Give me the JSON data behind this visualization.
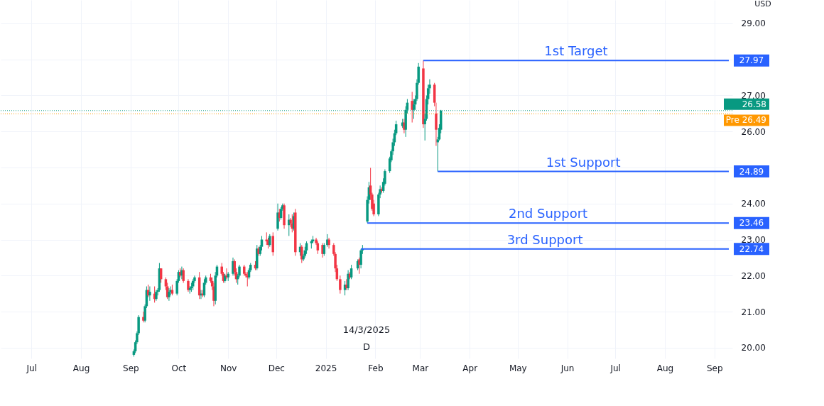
{
  "chart_data": {
    "type": "candlestick",
    "x": [
      "2024-09-03",
      "2024-09-04",
      "2024-09-05",
      "2024-09-06",
      "2024-09-09",
      "2024-09-10",
      "2024-09-11",
      "2024-09-12",
      "2024-09-13",
      "2024-09-16",
      "2024-09-17",
      "2024-09-18",
      "2024-09-19",
      "2024-09-20",
      "2024-09-23",
      "2024-09-24",
      "2024-09-25",
      "2024-09-26",
      "2024-09-27",
      "2024-09-30",
      "2024-10-01",
      "2024-10-02",
      "2024-10-03",
      "2024-10-04",
      "2024-10-07",
      "2024-10-08",
      "2024-10-09",
      "2024-10-10",
      "2024-10-11",
      "2024-10-14",
      "2024-10-15",
      "2024-10-16",
      "2024-10-17",
      "2024-10-18",
      "2024-10-21",
      "2024-10-22",
      "2024-10-23",
      "2024-10-24",
      "2024-10-25",
      "2024-10-28",
      "2024-10-29",
      "2024-10-30",
      "2024-10-31",
      "2024-11-01",
      "2024-11-04",
      "2024-11-05",
      "2024-11-06",
      "2024-11-07",
      "2024-11-08",
      "2024-11-11",
      "2024-11-12",
      "2024-11-13",
      "2024-11-14",
      "2024-11-15",
      "2024-11-18",
      "2024-11-19",
      "2024-11-20",
      "2024-11-21",
      "2024-11-22",
      "2024-11-25",
      "2024-11-26",
      "2024-11-27",
      "2024-11-29",
      "2024-12-02",
      "2024-12-03",
      "2024-12-04",
      "2024-12-05",
      "2024-12-06",
      "2024-12-09",
      "2024-12-10",
      "2024-12-11",
      "2024-12-12",
      "2024-12-13",
      "2024-12-16",
      "2024-12-17",
      "2024-12-18",
      "2024-12-19",
      "2024-12-20",
      "2024-12-23",
      "2024-12-24",
      "2024-12-26",
      "2024-12-27",
      "2024-12-30",
      "2024-12-31",
      "2025-01-02",
      "2025-01-03",
      "2025-01-06",
      "2025-01-07",
      "2025-01-08",
      "2025-01-10",
      "2025-01-13",
      "2025-01-14",
      "2025-01-15",
      "2025-01-16",
      "2025-01-17",
      "2025-01-21",
      "2025-01-22",
      "2025-01-23",
      "2025-01-24",
      "2025-01-27",
      "2025-01-28",
      "2025-01-29",
      "2025-01-30",
      "2025-01-31",
      "2025-02-03",
      "2025-02-04",
      "2025-02-05",
      "2025-02-06",
      "2025-02-07",
      "2025-02-10",
      "2025-02-11",
      "2025-02-12",
      "2025-02-13",
      "2025-02-14",
      "2025-02-18",
      "2025-02-19",
      "2025-02-20",
      "2025-02-21",
      "2025-02-24",
      "2025-02-25",
      "2025-02-26",
      "2025-02-27",
      "2025-02-28",
      "2025-03-03",
      "2025-03-04",
      "2025-03-05",
      "2025-03-06",
      "2025-03-07",
      "2025-03-10",
      "2025-03-11",
      "2025-03-12",
      "2025-03-13",
      "2025-03-14"
    ],
    "ohlc": [
      [
        19.8,
        19.95,
        19.75,
        19.9
      ],
      [
        19.9,
        20.2,
        19.85,
        20.15
      ],
      [
        20.15,
        20.45,
        20.1,
        20.4
      ],
      [
        20.4,
        20.9,
        20.35,
        20.85
      ],
      [
        20.85,
        21.0,
        20.7,
        20.75
      ],
      [
        20.75,
        21.2,
        20.7,
        21.15
      ],
      [
        21.15,
        21.7,
        21.1,
        21.6
      ],
      [
        21.6,
        21.75,
        21.4,
        21.45
      ],
      [
        21.45,
        21.7,
        21.3,
        21.55
      ],
      [
        21.5,
        21.7,
        21.25,
        21.35
      ],
      [
        21.35,
        21.6,
        21.3,
        21.55
      ],
      [
        21.55,
        21.65,
        21.45,
        21.6
      ],
      [
        21.6,
        22.35,
        21.55,
        22.2
      ],
      [
        22.2,
        22.2,
        21.8,
        21.9
      ],
      [
        21.9,
        21.95,
        21.6,
        21.7
      ],
      [
        21.7,
        21.8,
        21.35,
        21.4
      ],
      [
        21.4,
        21.65,
        21.3,
        21.55
      ],
      [
        21.55,
        21.7,
        21.45,
        21.6
      ],
      [
        21.6,
        21.75,
        21.45,
        21.5
      ],
      [
        21.5,
        21.9,
        21.45,
        21.85
      ],
      [
        21.85,
        22.15,
        21.8,
        22.1
      ],
      [
        22.1,
        22.2,
        21.95,
        22.0
      ],
      [
        22.0,
        22.25,
        21.9,
        22.15
      ],
      [
        22.15,
        22.2,
        21.8,
        21.85
      ],
      [
        21.85,
        21.9,
        21.55,
        21.6
      ],
      [
        21.6,
        21.7,
        21.5,
        21.65
      ],
      [
        21.65,
        21.8,
        21.55,
        21.7
      ],
      [
        21.7,
        21.9,
        21.6,
        21.85
      ],
      [
        21.85,
        22.0,
        21.8,
        21.95
      ],
      [
        21.95,
        22.1,
        21.35,
        21.45
      ],
      [
        21.45,
        21.6,
        21.35,
        21.5
      ],
      [
        21.5,
        21.6,
        21.4,
        21.45
      ],
      [
        21.45,
        21.9,
        21.4,
        21.8
      ],
      [
        21.8,
        22.0,
        21.75,
        21.95
      ],
      [
        21.95,
        22.05,
        21.8,
        21.85
      ],
      [
        21.85,
        21.95,
        21.6,
        21.7
      ],
      [
        21.7,
        21.8,
        21.15,
        21.3
      ],
      [
        21.3,
        22.1,
        21.2,
        22.0
      ],
      [
        22.0,
        22.3,
        21.95,
        22.25
      ],
      [
        22.25,
        22.35,
        22.0,
        22.05
      ],
      [
        22.05,
        22.1,
        21.8,
        21.85
      ],
      [
        21.85,
        22.05,
        21.8,
        22.0
      ],
      [
        22.0,
        22.2,
        21.9,
        21.95
      ],
      [
        21.95,
        22.1,
        21.85,
        22.05
      ],
      [
        22.05,
        22.5,
        22.0,
        22.4
      ],
      [
        22.4,
        22.45,
        22.0,
        22.1
      ],
      [
        22.1,
        22.2,
        21.8,
        21.9
      ],
      [
        21.9,
        22.05,
        21.75,
        22.0
      ],
      [
        22.0,
        22.3,
        21.95,
        22.25
      ],
      [
        22.25,
        22.3,
        22.0,
        22.05
      ],
      [
        22.05,
        22.1,
        21.95,
        22.0
      ],
      [
        22.0,
        22.1,
        21.7,
        21.95
      ],
      [
        21.95,
        22.2,
        21.9,
        22.15
      ],
      [
        22.15,
        22.35,
        22.1,
        22.3
      ],
      [
        22.3,
        22.4,
        22.15,
        22.2
      ],
      [
        22.2,
        22.85,
        22.15,
        22.75
      ],
      [
        22.75,
        22.8,
        22.55,
        22.6
      ],
      [
        22.6,
        22.85,
        22.55,
        22.8
      ],
      [
        22.8,
        23.1,
        22.7,
        23.0
      ],
      [
        23.0,
        23.2,
        22.85,
        22.95
      ],
      [
        22.95,
        23.05,
        22.75,
        22.85
      ],
      [
        22.85,
        23.15,
        22.8,
        23.1
      ],
      [
        23.1,
        23.2,
        22.55,
        22.65
      ],
      [
        23.3,
        24.0,
        23.25,
        23.75
      ],
      [
        23.75,
        23.85,
        23.5,
        23.6
      ],
      [
        23.6,
        23.9,
        23.55,
        23.85
      ],
      [
        23.85,
        24.0,
        23.8,
        23.95
      ],
      [
        23.95,
        24.0,
        23.3,
        23.4
      ],
      [
        23.4,
        23.7,
        23.1,
        23.55
      ],
      [
        23.55,
        23.6,
        23.35,
        23.45
      ],
      [
        23.45,
        23.7,
        23.2,
        23.3
      ],
      [
        23.3,
        23.75,
        23.25,
        23.65
      ],
      [
        23.75,
        23.85,
        22.55,
        22.65
      ],
      [
        22.65,
        22.9,
        22.55,
        22.8
      ],
      [
        22.8,
        22.85,
        22.35,
        22.45
      ],
      [
        22.45,
        22.6,
        22.4,
        22.55
      ],
      [
        22.55,
        22.8,
        22.5,
        22.7
      ],
      [
        22.7,
        22.95,
        22.6,
        22.9
      ],
      [
        22.9,
        23.0,
        22.75,
        22.95
      ],
      [
        22.95,
        23.1,
        22.9,
        23.0
      ],
      [
        23.0,
        23.05,
        22.85,
        22.9
      ],
      [
        22.9,
        22.95,
        22.6,
        22.7
      ],
      [
        22.85,
        22.9,
        22.5,
        22.6
      ],
      [
        22.6,
        22.9,
        22.55,
        22.85
      ],
      [
        22.85,
        23.15,
        22.8,
        23.0
      ],
      [
        23.0,
        23.05,
        22.75,
        22.85
      ],
      [
        22.85,
        22.9,
        22.55,
        22.6
      ],
      [
        22.6,
        22.65,
        22.1,
        22.2
      ],
      [
        22.2,
        22.3,
        21.85,
        21.9
      ],
      [
        21.9,
        22.0,
        21.5,
        21.6
      ],
      [
        21.6,
        21.85,
        21.45,
        21.75
      ],
      [
        21.75,
        21.9,
        21.6,
        21.65
      ],
      [
        21.65,
        22.15,
        21.6,
        22.05
      ],
      [
        22.05,
        22.1,
        21.9,
        21.95
      ],
      [
        21.95,
        22.3,
        21.9,
        22.2
      ],
      [
        22.2,
        22.45,
        22.15,
        22.4
      ],
      [
        22.45,
        22.5,
        22.05,
        22.3
      ],
      [
        22.3,
        22.74,
        22.2,
        22.7
      ],
      [
        22.7,
        22.85,
        22.6,
        22.75
      ],
      [
        23.5,
        24.2,
        23.46,
        24.1
      ],
      [
        24.1,
        24.6,
        24.0,
        24.45
      ],
      [
        24.5,
        24.99,
        24.1,
        24.25
      ],
      [
        24.25,
        24.3,
        23.8,
        23.85
      ],
      [
        24.0,
        24.1,
        23.65,
        23.7
      ],
      [
        23.7,
        24.3,
        23.65,
        24.25
      ],
      [
        24.25,
        24.5,
        24.15,
        24.4
      ],
      [
        24.4,
        24.45,
        24.3,
        24.35
      ],
      [
        24.35,
        24.7,
        24.3,
        24.6
      ],
      [
        24.55,
        24.95,
        24.5,
        24.9
      ],
      [
        24.9,
        25.3,
        24.85,
        25.25
      ],
      [
        25.2,
        25.5,
        25.15,
        25.45
      ],
      [
        25.45,
        25.8,
        25.35,
        25.7
      ],
      [
        25.7,
        26.05,
        25.6,
        25.95
      ],
      [
        25.95,
        26.3,
        25.9,
        26.2
      ],
      [
        26.15,
        26.35,
        26.1,
        26.25
      ],
      [
        26.25,
        26.35,
        25.95,
        26.05
      ],
      [
        26.05,
        26.7,
        25.85,
        26.6
      ],
      [
        26.6,
        26.9,
        26.5,
        26.8
      ],
      [
        26.85,
        27.1,
        26.25,
        26.6
      ],
      [
        26.6,
        26.9,
        26.35,
        26.75
      ],
      [
        26.75,
        27.0,
        26.6,
        26.9
      ],
      [
        26.9,
        27.45,
        26.85,
        27.35
      ],
      [
        27.35,
        27.9,
        27.3,
        27.8
      ],
      [
        27.75,
        27.97,
        26.1,
        26.2
      ],
      [
        26.2,
        26.5,
        25.75,
        26.35
      ],
      [
        26.35,
        27.0,
        26.3,
        26.9
      ],
      [
        26.9,
        27.3,
        26.75,
        27.2
      ],
      [
        27.2,
        27.45,
        27.05,
        27.3
      ],
      [
        27.3,
        27.35,
        26.7,
        26.8
      ],
      [
        26.5,
        26.8,
        25.6,
        26.05
      ],
      [
        25.7,
        25.85,
        24.89,
        25.78
      ],
      [
        25.78,
        26.2,
        25.75,
        26.1
      ],
      [
        26.05,
        26.6,
        25.95,
        26.58
      ]
    ],
    "series": [
      {
        "type": "line",
        "name": "1st Target",
        "color": "#2962ff",
        "x": [
          "2025-03-03",
          "2025-09-10"
        ],
        "values": [
          27.97,
          27.97
        ],
        "value_labels": [
          null,
          "27.97"
        ]
      },
      {
        "type": "line",
        "name": "1st Support",
        "color": "#2962ff",
        "x": [
          "2025-03-12",
          "2025-09-10"
        ],
        "values": [
          24.89,
          24.89
        ],
        "value_labels": [
          null,
          "24.89"
        ]
      },
      {
        "type": "line",
        "name": "2nd Support",
        "color": "#2962ff",
        "x": [
          "2025-01-27",
          "2025-09-10"
        ],
        "values": [
          23.46,
          23.46
        ],
        "value_labels": [
          null,
          "23.46"
        ]
      },
      {
        "type": "line",
        "name": "3rd Support",
        "color": "#2962ff",
        "x": [
          "2025-01-23",
          "2025-09-10"
        ],
        "values": [
          22.74,
          22.74
        ],
        "value_labels": [
          null,
          "22.74"
        ]
      }
    ],
    "ref_lines": [
      {
        "axis": "y",
        "value": 26.58,
        "label": "26.58",
        "color": "#089981",
        "line_style": "dotted"
      },
      {
        "axis": "y",
        "value": 26.49,
        "label": "Pre 26.49",
        "color": "#ff9800",
        "line_style": "dotted"
      }
    ],
    "annotations": [
      "USD",
      "14/3/2025",
      "D"
    ],
    "xlim": [
      "2024-06-14",
      "2025-09-10"
    ],
    "xticks": [
      {
        "value": "2024-07-01",
        "label": "Jul"
      },
      {
        "value": "2024-08-01",
        "label": "Aug"
      },
      {
        "value": "2024-09-01",
        "label": "Sep"
      },
      {
        "value": "2024-10-01",
        "label": "Oct"
      },
      {
        "value": "2024-11-01",
        "label": "Nov"
      },
      {
        "value": "2024-12-01",
        "label": "Dec"
      },
      {
        "value": "2025-01-01",
        "label": "2025"
      },
      {
        "value": "2025-02-01",
        "label": "Feb"
      },
      {
        "value": "2025-03-01",
        "label": "Mar"
      },
      {
        "value": "2025-04-01",
        "label": "Apr"
      },
      {
        "value": "2025-05-01",
        "label": "May"
      },
      {
        "value": "2025-06-01",
        "label": "Jun"
      },
      {
        "value": "2025-07-01",
        "label": "Jul"
      },
      {
        "value": "2025-08-01",
        "label": "Aug"
      },
      {
        "value": "2025-09-01",
        "label": "Sep"
      }
    ],
    "ylim": [
      19.7,
      29.65
    ],
    "yticks": [
      {
        "value": 20,
        "label": "20.00"
      },
      {
        "value": 21,
        "label": "21.00"
      },
      {
        "value": 22,
        "label": "22.00"
      },
      {
        "value": 23,
        "label": "23.00"
      },
      {
        "value": 24,
        "label": "24.00"
      },
      {
        "value": 25,
        "label": null
      },
      {
        "value": 26,
        "label": "26.00"
      },
      {
        "value": 27,
        "label": "27.00"
      },
      {
        "value": 28,
        "label": null
      },
      {
        "value": 29,
        "label": "29.00"
      }
    ],
    "grid": true
  }
}
